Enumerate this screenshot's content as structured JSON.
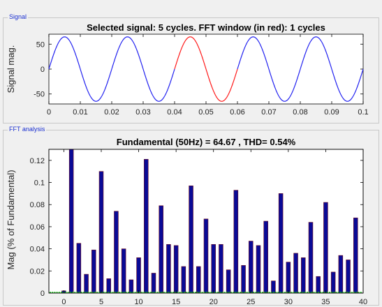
{
  "panels": {
    "signal_title": "Signal",
    "fft_title": "FFT analysis"
  },
  "chart_data": [
    {
      "type": "line",
      "title": "Selected signal: 5 cycles. FFT window (in red): 1 cycles",
      "xlabel": "",
      "ylabel": "Signal mag.",
      "xlim": [
        0,
        0.1
      ],
      "ylim": [
        -70,
        70
      ],
      "xticks": [
        "0",
        "0.01",
        "0.02",
        "0.03",
        "0.04",
        "0.05",
        "0.06",
        "0.07",
        "0.08",
        "0.09",
        "0.1"
      ],
      "yticks": [
        "50",
        "0",
        "-50"
      ],
      "signal": {
        "amplitude": 64.67,
        "frequency_hz": 50,
        "x_start": 0,
        "x_end": 0.1
      },
      "fft_window": {
        "x_start": 0.04,
        "x_end": 0.06
      },
      "colors": {
        "signal": "#2323f0",
        "fft_window": "#ff1a1a"
      },
      "grid": false
    },
    {
      "type": "bar",
      "title": "Fundamental (50Hz) = 64.67 , THD= 0.54%",
      "xlabel": "",
      "ylabel": "Mag (% of Fundamental)",
      "xlim": [
        -2,
        40
      ],
      "ylim": [
        0,
        0.13
      ],
      "xticks": [
        "0",
        "5",
        "10",
        "15",
        "20",
        "25",
        "30",
        "35",
        "40"
      ],
      "yticks": [
        "0",
        "0.02",
        "0.04",
        "0.06",
        "0.08",
        "0.1",
        "0.12"
      ],
      "harmonics": [
        0,
        1,
        2,
        3,
        4,
        5,
        6,
        7,
        8,
        9,
        10,
        11,
        12,
        13,
        14,
        15,
        16,
        17,
        18,
        19,
        20,
        21,
        22,
        23,
        24,
        25,
        26,
        27,
        28,
        29,
        30,
        31,
        32,
        33,
        34,
        35,
        36,
        37,
        38,
        39,
        40
      ],
      "values": [
        0.002,
        0.132,
        0.045,
        0.017,
        0.039,
        0.11,
        0.013,
        0.074,
        0.04,
        0.012,
        0.032,
        0.121,
        0.018,
        0.079,
        0.044,
        0.043,
        0.024,
        0.097,
        0.024,
        0.067,
        0.044,
        0.044,
        0.021,
        0.093,
        0.025,
        0.047,
        0.043,
        0.065,
        0.011,
        0.09,
        0.028,
        0.036,
        0.032,
        0.064,
        0.015,
        0.082,
        0.019,
        0.034,
        0.03,
        0.068,
        0.0
      ],
      "colors": {
        "bar_fill": "#0a0a96",
        "bar_edge": "#6a0a1e",
        "floor_line": "#13d013"
      },
      "grid": false
    }
  ]
}
